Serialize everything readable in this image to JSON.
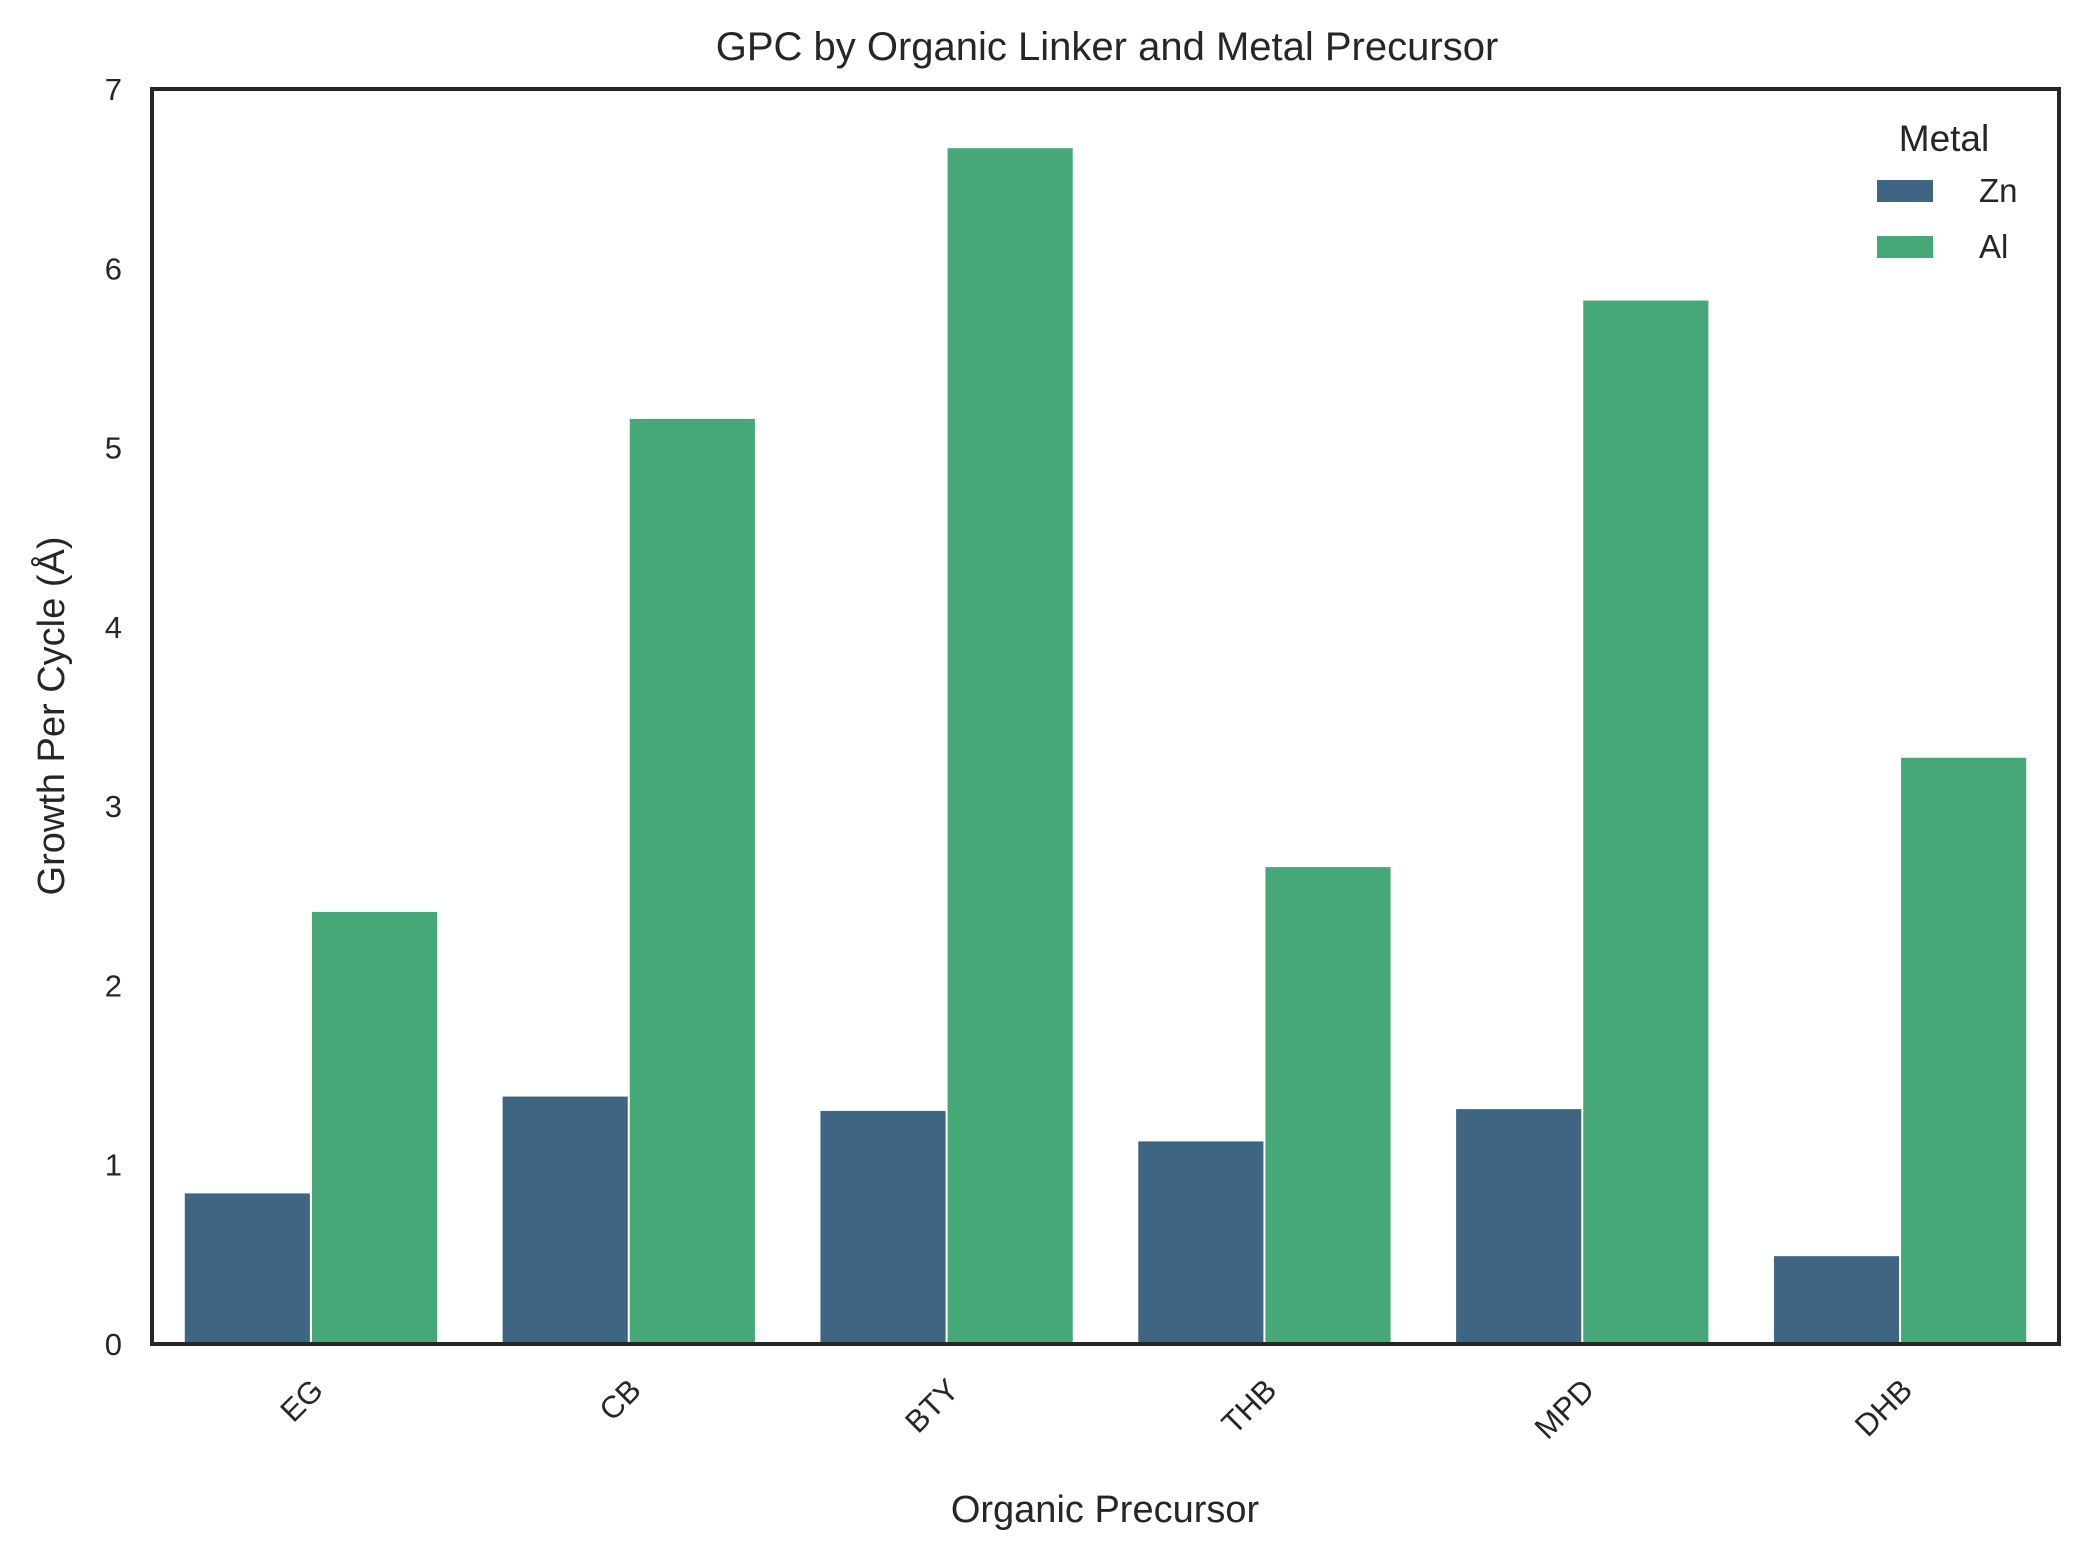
{
  "chart_data": {
    "type": "bar",
    "title": "GPC by Organic Linker and Metal Precursor",
    "xlabel": "Organic Precursor",
    "ylabel": "Growth Per Cycle (Å)",
    "categories": [
      "EG",
      "CB",
      "BTY",
      "THB",
      "MPD",
      "DHB"
    ],
    "series": [
      {
        "name": "Zn",
        "color": "#3e6582",
        "values": [
          0.84,
          1.38,
          1.3,
          1.13,
          1.31,
          0.49
        ]
      },
      {
        "name": "Al",
        "color": "#46a877",
        "values": [
          2.41,
          5.16,
          6.67,
          2.66,
          5.82,
          3.27
        ]
      }
    ],
    "ylim": [
      0,
      7
    ],
    "yticks": [
      "0",
      "1",
      "2",
      "3",
      "4",
      "5",
      "6",
      "7"
    ],
    "grid": false,
    "legend": {
      "title": "Metal",
      "position": "top-right"
    }
  }
}
